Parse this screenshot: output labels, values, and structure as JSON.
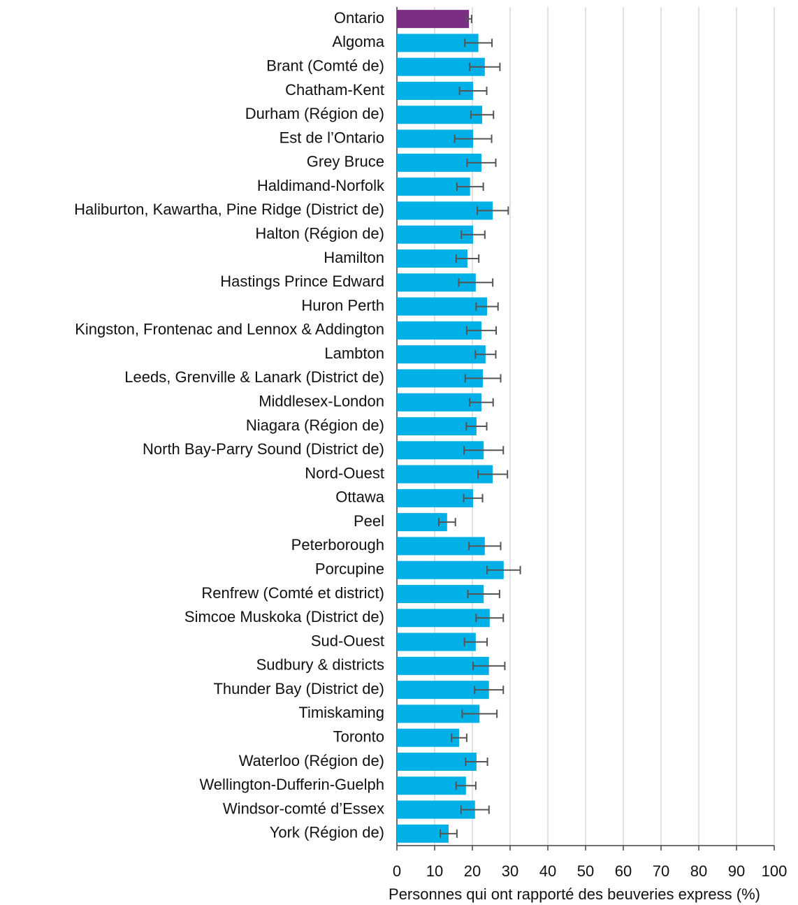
{
  "chart_data": {
    "type": "barh",
    "xlabel": "Personnes qui ont rapporté des beuveries express (%)",
    "categories": [
      "Ontario",
      "Algoma",
      "Brant (Comté de)",
      "Chatham-Kent",
      "Durham (Région de)",
      "Est de l’Ontario",
      "Grey Bruce",
      "Haldimand-Norfolk",
      "Haliburton, Kawartha, Pine Ridge (District de)",
      "Halton (Région de)",
      "Hamilton",
      "Hastings Prince Edward",
      "Huron Perth",
      "Kingston, Frontenac and Lennox & Addington",
      "Lambton",
      "Leeds, Grenville & Lanark (District de)",
      "Middlesex-London",
      "Niagara (Région de)",
      "North Bay-Parry Sound (District de)",
      "Nord-Ouest",
      "Ottawa",
      "Peel",
      "Peterborough",
      "Porcupine",
      "Renfrew (Comté et district)",
      "Simcoe Muskoka (District de)",
      "Sud-Ouest",
      "Sudbury & districts",
      "Thunder Bay (District de)",
      "Timiskaming",
      "Toronto",
      "Waterloo (Région de)",
      "Wellington-Dufferin-Guelph",
      "Windsor-comté d’Essex",
      "York (Région de)"
    ],
    "values": [
      19.1,
      21.6,
      23.3,
      20.2,
      22.6,
      20.2,
      22.4,
      19.4,
      25.4,
      20.2,
      18.7,
      20.9,
      23.9,
      22.4,
      23.5,
      22.8,
      22.4,
      21.1,
      23.0,
      25.4,
      20.2,
      13.3,
      23.3,
      28.3,
      23.0,
      24.6,
      20.9,
      24.4,
      24.4,
      21.9,
      16.5,
      21.1,
      18.3,
      20.7,
      13.7
    ],
    "errors": [
      0.7,
      3.6,
      4.0,
      3.6,
      3.0,
      4.9,
      3.8,
      3.5,
      4.1,
      3.1,
      3.0,
      4.5,
      2.9,
      3.9,
      2.7,
      4.7,
      3.1,
      2.7,
      5.2,
      3.9,
      2.5,
      2.2,
      4.2,
      4.4,
      4.2,
      3.6,
      3.0,
      4.2,
      3.8,
      4.6,
      2.0,
      2.9,
      2.6,
      3.7,
      2.2
    ],
    "colors": [
      "#7b2c83",
      "#00b0e6",
      "#00b0e6",
      "#00b0e6",
      "#00b0e6",
      "#00b0e6",
      "#00b0e6",
      "#00b0e6",
      "#00b0e6",
      "#00b0e6",
      "#00b0e6",
      "#00b0e6",
      "#00b0e6",
      "#00b0e6",
      "#00b0e6",
      "#00b0e6",
      "#00b0e6",
      "#00b0e6",
      "#00b0e6",
      "#00b0e6",
      "#00b0e6",
      "#00b0e6",
      "#00b0e6",
      "#00b0e6",
      "#00b0e6",
      "#00b0e6",
      "#00b0e6",
      "#00b0e6",
      "#00b0e6",
      "#00b0e6",
      "#00b0e6",
      "#00b0e6",
      "#00b0e6",
      "#00b0e6",
      "#00b0e6"
    ],
    "xlim": [
      0,
      100
    ],
    "xticks": [
      0,
      10,
      20,
      30,
      40,
      50,
      60,
      70,
      80,
      90,
      100
    ],
    "grid": true
  }
}
